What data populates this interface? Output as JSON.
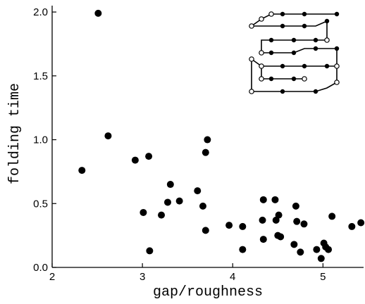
{
  "chart_data": {
    "type": "scatter",
    "title": "",
    "xlabel": "gap/roughness",
    "ylabel": "folding time",
    "xlim": [
      2,
      5.45
    ],
    "ylim": [
      0,
      2.05
    ],
    "grid": false,
    "x_ticks": [
      {
        "value": 2,
        "label": "2"
      },
      {
        "value": 3,
        "label": "3"
      },
      {
        "value": 4,
        "label": "4"
      },
      {
        "value": 5,
        "label": "5"
      }
    ],
    "y_ticks": [
      {
        "value": 0.0,
        "label": "0.0"
      },
      {
        "value": 0.5,
        "label": "0.5"
      },
      {
        "value": 1.0,
        "label": "1.0"
      },
      {
        "value": 1.5,
        "label": "1.5"
      },
      {
        "value": 2.0,
        "label": "2.0"
      }
    ],
    "points": [
      {
        "x": 2.51,
        "y": 1.99
      },
      {
        "x": 2.33,
        "y": 0.76
      },
      {
        "x": 2.62,
        "y": 1.03
      },
      {
        "x": 2.92,
        "y": 0.84
      },
      {
        "x": 3.07,
        "y": 0.87
      },
      {
        "x": 3.01,
        "y": 0.43
      },
      {
        "x": 3.08,
        "y": 0.13
      },
      {
        "x": 3.21,
        "y": 0.41
      },
      {
        "x": 3.28,
        "y": 0.51
      },
      {
        "x": 3.31,
        "y": 0.65
      },
      {
        "x": 3.41,
        "y": 0.52
      },
      {
        "x": 3.61,
        "y": 0.6
      },
      {
        "x": 3.67,
        "y": 0.48
      },
      {
        "x": 3.7,
        "y": 0.9
      },
      {
        "x": 3.72,
        "y": 1.0
      },
      {
        "x": 3.7,
        "y": 0.29
      },
      {
        "x": 3.96,
        "y": 0.33
      },
      {
        "x": 4.11,
        "y": 0.32
      },
      {
        "x": 4.11,
        "y": 0.14
      },
      {
        "x": 4.33,
        "y": 0.37
      },
      {
        "x": 4.34,
        "y": 0.53
      },
      {
        "x": 4.34,
        "y": 0.22
      },
      {
        "x": 4.47,
        "y": 0.53
      },
      {
        "x": 4.48,
        "y": 0.37
      },
      {
        "x": 4.51,
        "y": 0.41
      },
      {
        "x": 4.5,
        "y": 0.25
      },
      {
        "x": 4.53,
        "y": 0.24
      },
      {
        "x": 4.68,
        "y": 0.18
      },
      {
        "x": 4.7,
        "y": 0.48
      },
      {
        "x": 4.71,
        "y": 0.36
      },
      {
        "x": 4.75,
        "y": 0.12
      },
      {
        "x": 4.79,
        "y": 0.34
      },
      {
        "x": 4.93,
        "y": 0.14
      },
      {
        "x": 4.98,
        "y": 0.07
      },
      {
        "x": 5.01,
        "y": 0.19
      },
      {
        "x": 5.03,
        "y": 0.16
      },
      {
        "x": 5.06,
        "y": 0.14
      },
      {
        "x": 5.1,
        "y": 0.4
      },
      {
        "x": 5.32,
        "y": 0.32
      },
      {
        "x": 5.42,
        "y": 0.35
      }
    ],
    "marker_color": "#000000"
  },
  "inset": {
    "description_icon": "lattice-protein-conformation-icon"
  }
}
